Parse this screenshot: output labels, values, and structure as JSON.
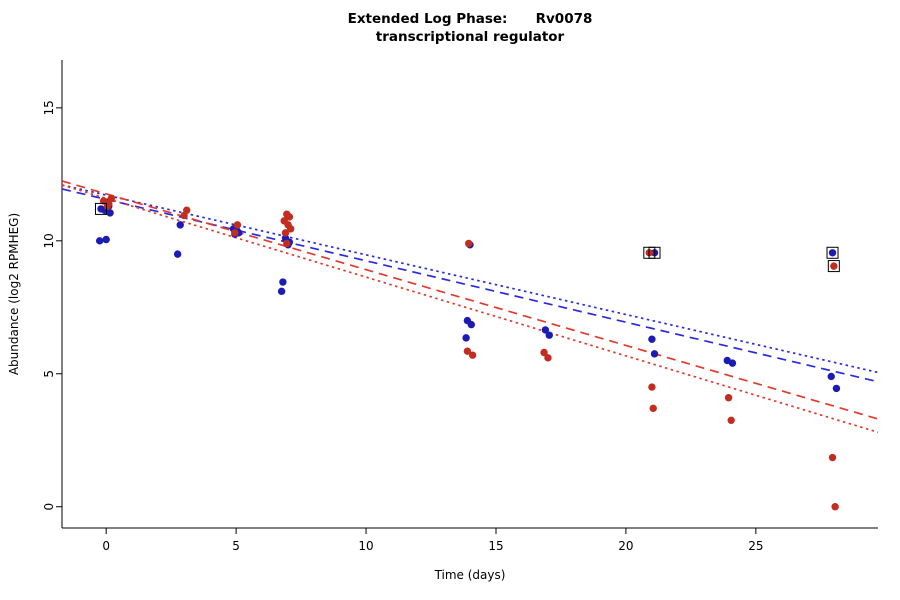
{
  "chart_data": {
    "type": "scatter",
    "title": "Extended Log Phase:      Rv0078",
    "subtitle": "transcriptional regulator",
    "xlabel": "Time  (days)",
    "ylabel": "Abundance  (log2 RPMHEG)",
    "xlim": [
      -1.7,
      29.7
    ],
    "ylim": [
      -0.8,
      16.8
    ],
    "xticks": [
      0,
      5,
      10,
      15,
      20,
      25
    ],
    "yticks": [
      0,
      5,
      10,
      15
    ],
    "grid": false,
    "legend": "none",
    "colors": {
      "blue": "#1c1cb4",
      "red": "#c22d1f",
      "blue_line": "#2a2ae0",
      "red_line": "#e23b2e",
      "square": "#000000",
      "axis": "#000000"
    },
    "series": [
      {
        "name": "blue-replicate",
        "color_key": "blue",
        "points": [
          [
            -0.2,
            11.2
          ],
          [
            0.05,
            11.45
          ],
          [
            0.1,
            11.3
          ],
          [
            -0.05,
            11.15
          ],
          [
            0.15,
            11.05
          ],
          [
            0.0,
            10.05
          ],
          [
            -0.25,
            10.0
          ],
          [
            2.85,
            10.6
          ],
          [
            2.75,
            9.5
          ],
          [
            4.9,
            10.45
          ],
          [
            5.0,
            10.5
          ],
          [
            5.05,
            10.35
          ],
          [
            4.95,
            10.25
          ],
          [
            5.1,
            10.3
          ],
          [
            6.9,
            10.1
          ],
          [
            7.05,
            9.95
          ],
          [
            7.0,
            9.85
          ],
          [
            6.8,
            8.45
          ],
          [
            6.75,
            8.1
          ],
          [
            14.0,
            9.85
          ],
          [
            13.9,
            7.0
          ],
          [
            14.05,
            6.85
          ],
          [
            13.85,
            6.35
          ],
          [
            16.9,
            6.65
          ],
          [
            17.05,
            6.45
          ],
          [
            21.1,
            9.55
          ],
          [
            21.0,
            6.3
          ],
          [
            21.1,
            5.75
          ],
          [
            23.9,
            5.5
          ],
          [
            24.1,
            5.4
          ],
          [
            27.95,
            9.55
          ],
          [
            27.9,
            4.9
          ],
          [
            28.1,
            4.45
          ]
        ]
      },
      {
        "name": "red-replicate",
        "color_key": "red",
        "points": [
          [
            0.2,
            11.6
          ],
          [
            -0.1,
            11.5
          ],
          [
            0.1,
            11.4
          ],
          [
            0.05,
            11.3
          ],
          [
            3.1,
            11.15
          ],
          [
            3.0,
            10.95
          ],
          [
            5.05,
            10.6
          ],
          [
            4.95,
            10.3
          ],
          [
            6.95,
            11.0
          ],
          [
            7.05,
            10.9
          ],
          [
            6.85,
            10.75
          ],
          [
            7.0,
            10.6
          ],
          [
            7.1,
            10.45
          ],
          [
            6.9,
            10.3
          ],
          [
            6.95,
            9.9
          ],
          [
            13.95,
            9.9
          ],
          [
            13.9,
            5.85
          ],
          [
            14.1,
            5.7
          ],
          [
            16.85,
            5.8
          ],
          [
            17.0,
            5.6
          ],
          [
            20.9,
            9.55
          ],
          [
            21.0,
            4.5
          ],
          [
            21.05,
            3.7
          ],
          [
            23.95,
            4.1
          ],
          [
            24.05,
            3.25
          ],
          [
            28.0,
            9.05
          ],
          [
            27.95,
            1.85
          ],
          [
            28.05,
            0.0
          ]
        ]
      }
    ],
    "squared_points": [
      [
        -0.2,
        11.2
      ],
      [
        20.9,
        9.55
      ],
      [
        21.1,
        9.55
      ],
      [
        27.95,
        9.55
      ],
      [
        28.0,
        9.05
      ]
    ],
    "trend_lines": [
      {
        "name": "blue-dashed",
        "color_key": "blue_line",
        "dash": "longdash",
        "x": [
          -1.7,
          29.7
        ],
        "y": [
          11.95,
          4.7
        ]
      },
      {
        "name": "blue-dotted",
        "color_key": "blue_line",
        "dash": "dotted",
        "x": [
          -1.7,
          29.7
        ],
        "y": [
          12.1,
          5.05
        ]
      },
      {
        "name": "red-dashed",
        "color_key": "red_line",
        "dash": "longdash",
        "x": [
          -1.7,
          29.7
        ],
        "y": [
          12.25,
          3.3
        ]
      },
      {
        "name": "red-dotted",
        "color_key": "red_line",
        "dash": "dotted",
        "x": [
          -1.7,
          29.7
        ],
        "y": [
          12.1,
          2.8
        ]
      }
    ]
  }
}
